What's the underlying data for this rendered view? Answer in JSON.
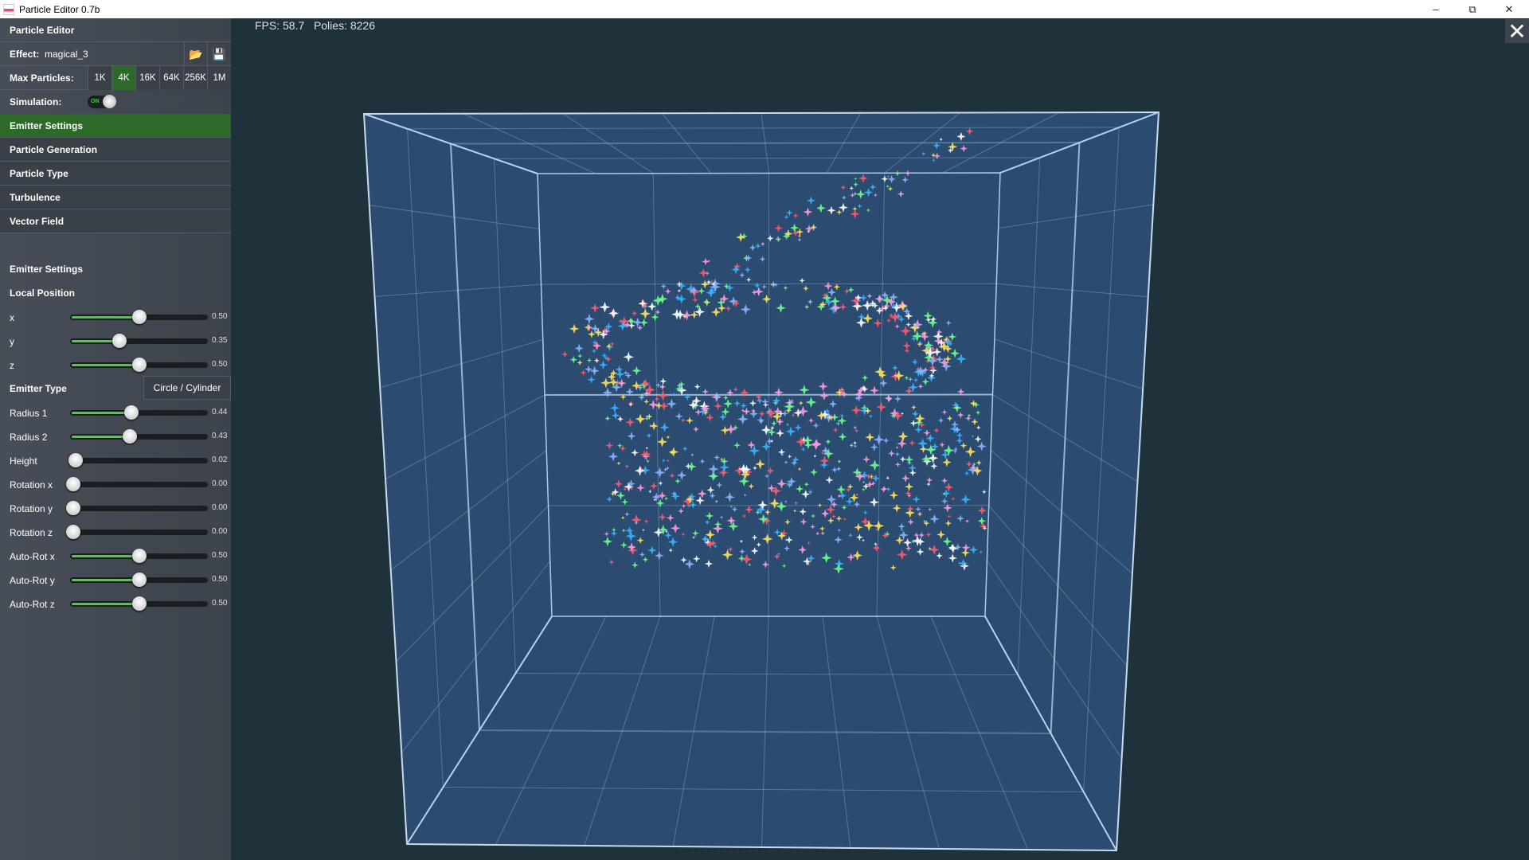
{
  "window": {
    "title": "Particle Editor 0.7b",
    "controls": [
      "minimize",
      "restore",
      "close"
    ]
  },
  "panel": {
    "title": "Particle Editor",
    "effect_label": "Effect:",
    "effect_value": "magical_3",
    "open_icon": "folder-open-icon",
    "save_icon": "save-icon",
    "max_particles_label": "Max Particles:",
    "max_particles_options": [
      "1K",
      "4K",
      "16K",
      "64K",
      "256K",
      "1M"
    ],
    "max_particles_selected": "4K",
    "simulation_label": "Simulation:",
    "simulation_state": "ON",
    "nav": [
      "Emitter Settings",
      "Particle Generation",
      "Particle Type",
      "Turbulence",
      "Vector Field"
    ],
    "nav_active": "Emitter Settings",
    "section_title": "Emitter Settings",
    "local_position_label": "Local Position",
    "emitter_type_label": "Emitter Type",
    "emitter_type_value": "Circle / Cylinder",
    "position_sliders": [
      {
        "label": "x",
        "value": 0.5,
        "text": "0.50"
      },
      {
        "label": "y",
        "value": 0.35,
        "text": "0.35"
      },
      {
        "label": "z",
        "value": 0.5,
        "text": "0.50"
      }
    ],
    "type_sliders": [
      {
        "label": "Radius 1",
        "value": 0.44,
        "text": "0.44"
      },
      {
        "label": "Radius 2",
        "value": 0.43,
        "text": "0.43"
      },
      {
        "label": "Height",
        "value": 0.02,
        "text": "0.02"
      },
      {
        "label": "Rotation x",
        "value": 0.0,
        "text": "0.00"
      },
      {
        "label": "Rotation y",
        "value": 0.0,
        "text": "0.00"
      },
      {
        "label": "Rotation z",
        "value": 0.0,
        "text": "0.00"
      },
      {
        "label": "Auto-Rot x",
        "value": 0.5,
        "text": "0.50"
      },
      {
        "label": "Auto-Rot y",
        "value": 0.5,
        "text": "0.50"
      },
      {
        "label": "Auto-Rot z",
        "value": 0.5,
        "text": "0.50"
      }
    ]
  },
  "viewport": {
    "fps": "FPS: 58.7",
    "polies": "Polies: 8226",
    "close_icon": "close-icon"
  },
  "colors": {
    "accent": "#2d6a2a",
    "slider_fill": "#4ccf3c",
    "viewport_bg": "#1f313b",
    "cube_face": "#2b4b70"
  }
}
